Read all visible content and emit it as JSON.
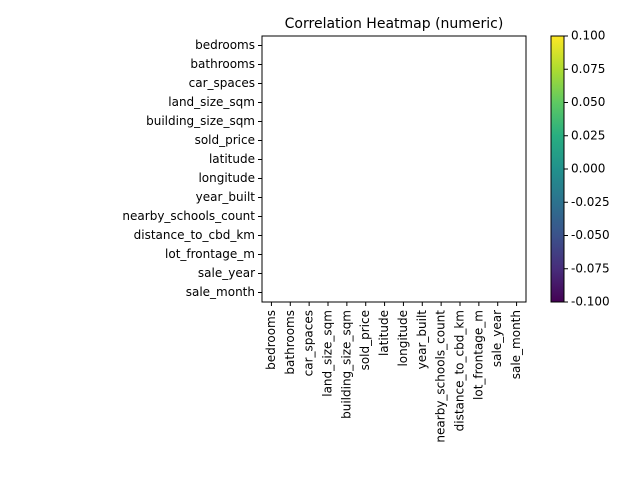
{
  "chart_data": {
    "type": "heatmap",
    "title": "Correlation Heatmap (numeric)",
    "variables": [
      "bedrooms",
      "bathrooms",
      "car_spaces",
      "land_size_sqm",
      "building_size_sqm",
      "sold_price",
      "latitude",
      "longitude",
      "year_built",
      "nearby_schools_count",
      "distance_to_cbd_km",
      "lot_frontage_m",
      "sale_year",
      "sale_month"
    ],
    "values": null,
    "colorbar": {
      "colormap": "viridis",
      "range": [
        -0.1,
        0.1
      ],
      "ticks": [
        "-0.100",
        "-0.075",
        "-0.050",
        "-0.025",
        "0.000",
        "0.025",
        "0.050",
        "0.075",
        "0.100"
      ]
    }
  }
}
